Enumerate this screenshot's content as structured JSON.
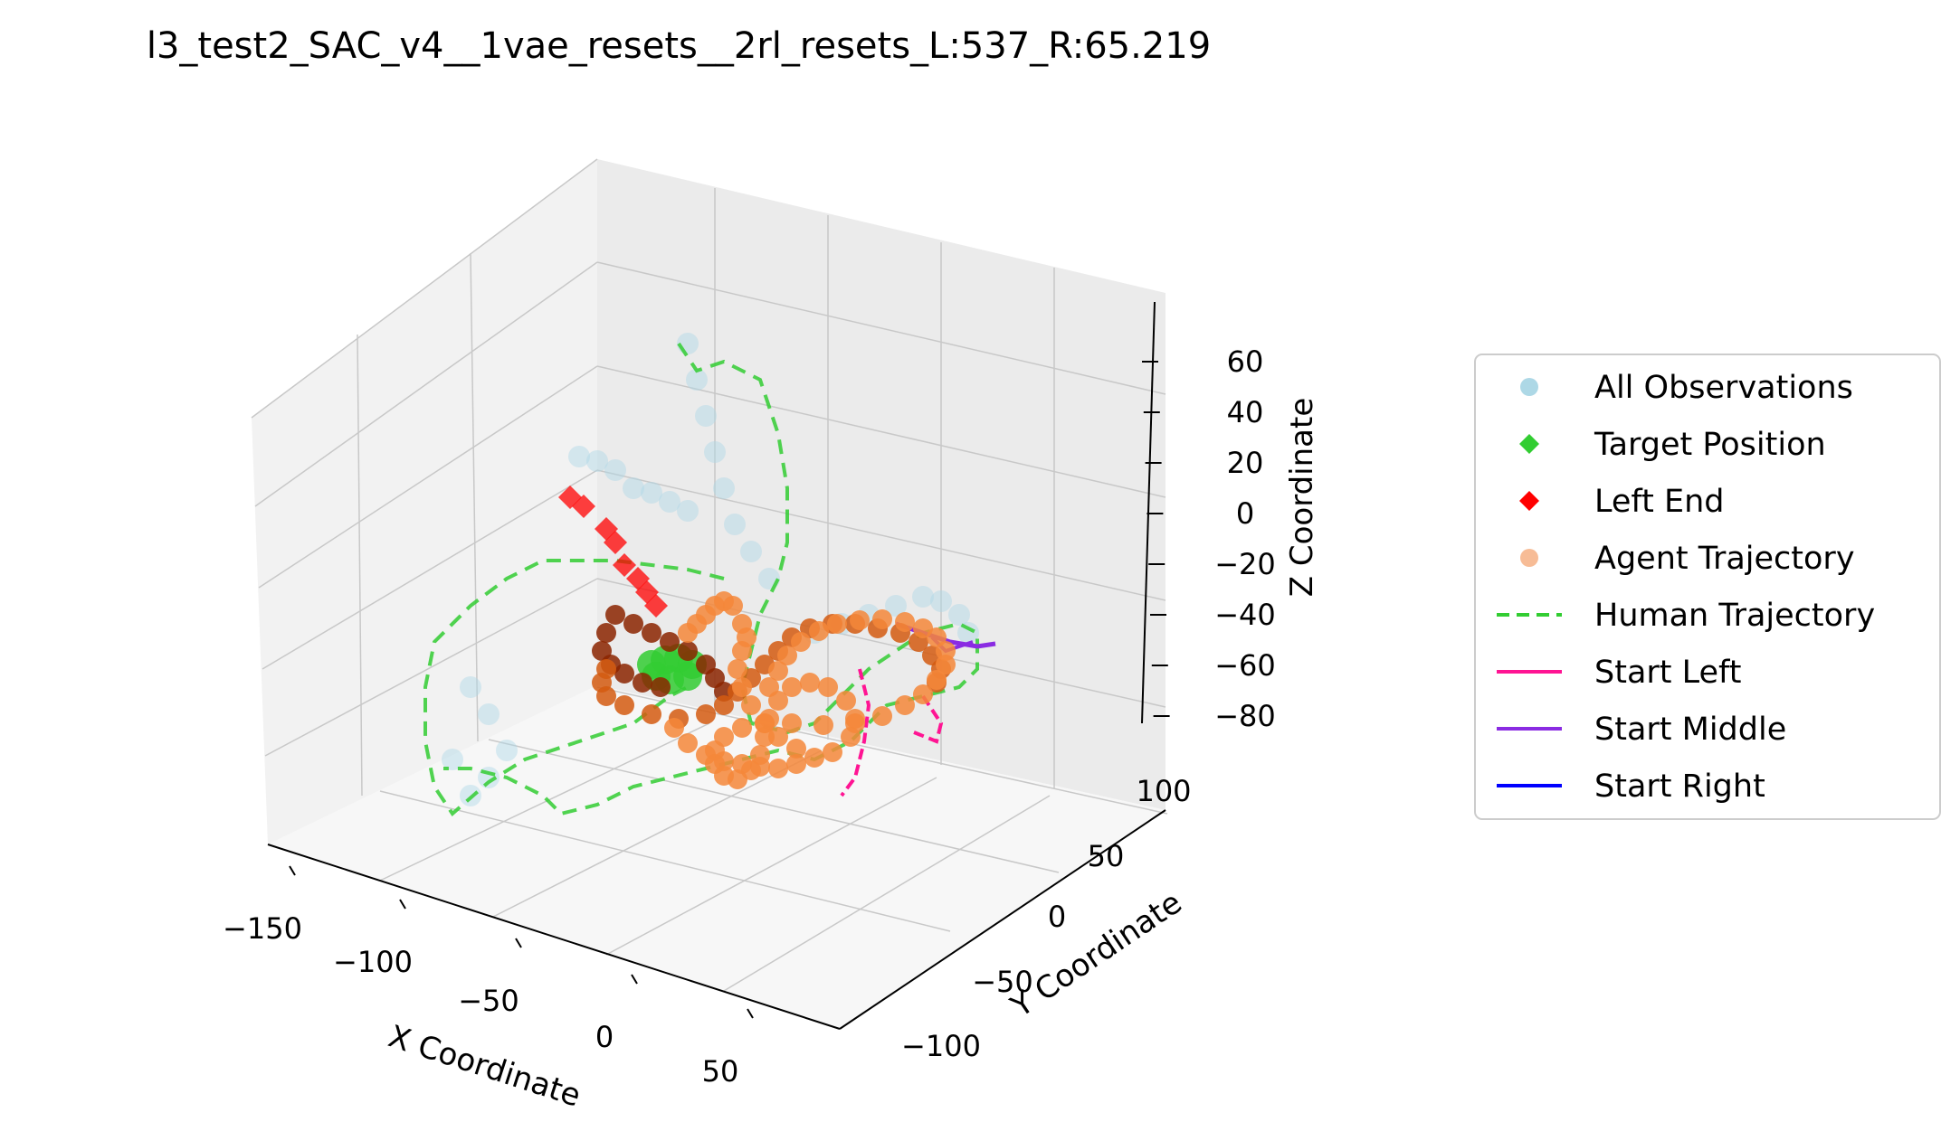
{
  "chart_data": {
    "type": "scatter",
    "projection": "3d",
    "title": "l3_test2_SAC_v4__1vae_resets__2rl_resets_L:537_R:65.219",
    "xlabel": "X Coordinate",
    "ylabel": "Y Coordinate",
    "zlabel": "Z Coordinate",
    "xlim": [
      -160,
      80
    ],
    "ylim": [
      -110,
      110
    ],
    "zlim": [
      -90,
      70
    ],
    "x_ticks": [
      "−150",
      "−100",
      "−50",
      "0",
      "50"
    ],
    "y_ticks": [
      "−100",
      "−50",
      "0",
      "50",
      "100"
    ],
    "z_ticks": [
      "−80",
      "−60",
      "−40",
      "−20",
      "0",
      "20",
      "40",
      "60"
    ],
    "grid": true,
    "legend_position": "right",
    "colors": {
      "observations": "#add8e6",
      "target": "#32cd32",
      "left_end": "#ff0000",
      "agent": "#f4a06a",
      "human": "#32cd32",
      "start_left": "#ff1493",
      "start_middle": "#8a2be2",
      "start_right": "#0000ff"
    },
    "legend": [
      {
        "label": "All Observations",
        "marker": "circle",
        "color": "#add8e6"
      },
      {
        "label": "Target Position",
        "marker": "diamond",
        "color": "#32cd32"
      },
      {
        "label": "Left End",
        "marker": "diamond",
        "color": "#ff0000"
      },
      {
        "label": "Agent Trajectory",
        "marker": "circle",
        "color": "#f4a06a"
      },
      {
        "label": "Human Trajectory",
        "marker": "dash",
        "color": "#32cd32"
      },
      {
        "label": "Start Left",
        "marker": "line",
        "color": "#ff1493"
      },
      {
        "label": "Start Middle",
        "marker": "line",
        "color": "#8a2be2"
      },
      {
        "label": "Start Right",
        "marker": "line",
        "color": "#0000ff"
      }
    ],
    "series": [
      {
        "name": "Human Trajectory",
        "points": [
          [
            -140,
            -10,
            10
          ],
          [
            -150,
            -30,
            -5
          ],
          [
            -160,
            -60,
            -20
          ],
          [
            -150,
            -90,
            -40
          ],
          [
            -120,
            -100,
            -60
          ],
          [
            -90,
            -95,
            -70
          ],
          [
            -60,
            -80,
            -80
          ],
          [
            -30,
            -60,
            -75
          ],
          [
            -10,
            -40,
            -60
          ],
          [
            0,
            -20,
            -40
          ],
          [
            10,
            0,
            -30
          ],
          [
            30,
            10,
            -20
          ],
          [
            50,
            20,
            -10
          ],
          [
            60,
            40,
            -20
          ],
          [
            55,
            60,
            -40
          ],
          [
            40,
            70,
            -55
          ],
          [
            20,
            60,
            -60
          ],
          [
            10,
            40,
            -50
          ],
          [
            5,
            20,
            -30
          ],
          [
            10,
            10,
            0
          ],
          [
            20,
            20,
            20
          ],
          [
            30,
            30,
            40
          ],
          [
            25,
            40,
            60
          ],
          [
            15,
            50,
            65
          ],
          [
            5,
            45,
            55
          ]
        ]
      },
      {
        "name": "Agent Trajectory",
        "points": [
          [
            -60,
            -30,
            -50
          ],
          [
            -50,
            -10,
            -55
          ],
          [
            -30,
            10,
            -60
          ],
          [
            -10,
            20,
            -55
          ],
          [
            10,
            10,
            -50
          ],
          [
            20,
            -10,
            -55
          ],
          [
            10,
            -30,
            -60
          ],
          [
            -10,
            -40,
            -65
          ],
          [
            -30,
            -40,
            -60
          ],
          [
            -40,
            -20,
            -50
          ],
          [
            -30,
            0,
            -40
          ],
          [
            -10,
            10,
            -30
          ],
          [
            10,
            20,
            -25
          ],
          [
            30,
            30,
            -30
          ],
          [
            40,
            20,
            -40
          ],
          [
            40,
            0,
            -50
          ],
          [
            30,
            -20,
            -60
          ],
          [
            10,
            -40,
            -70
          ],
          [
            -10,
            -50,
            -75
          ],
          [
            -30,
            -50,
            -70
          ],
          [
            -40,
            -35,
            -60
          ],
          [
            -35,
            -15,
            -50
          ],
          [
            -20,
            0,
            -45
          ],
          [
            0,
            10,
            -45
          ],
          [
            20,
            15,
            -50
          ],
          [
            30,
            5,
            -58
          ],
          [
            25,
            -15,
            -66
          ],
          [
            10,
            -30,
            -72
          ]
        ]
      },
      {
        "name": "Left End",
        "points": [
          [
            -110,
            20,
            40
          ],
          [
            -100,
            15,
            30
          ],
          [
            -95,
            10,
            20
          ],
          [
            -90,
            5,
            10
          ],
          [
            -80,
            0,
            0
          ],
          [
            -70,
            -5,
            -10
          ]
        ]
      },
      {
        "name": "Start Left",
        "points": [
          [
            30,
            -40,
            -70
          ],
          [
            35,
            -45,
            -80
          ],
          [
            40,
            -50,
            -88
          ],
          [
            45,
            -40,
            -82
          ]
        ]
      },
      {
        "name": "Start Middle",
        "points": [
          [
            60,
            20,
            -30
          ],
          [
            65,
            25,
            -35
          ],
          [
            70,
            30,
            -38
          ],
          [
            75,
            28,
            -40
          ]
        ]
      }
    ]
  }
}
